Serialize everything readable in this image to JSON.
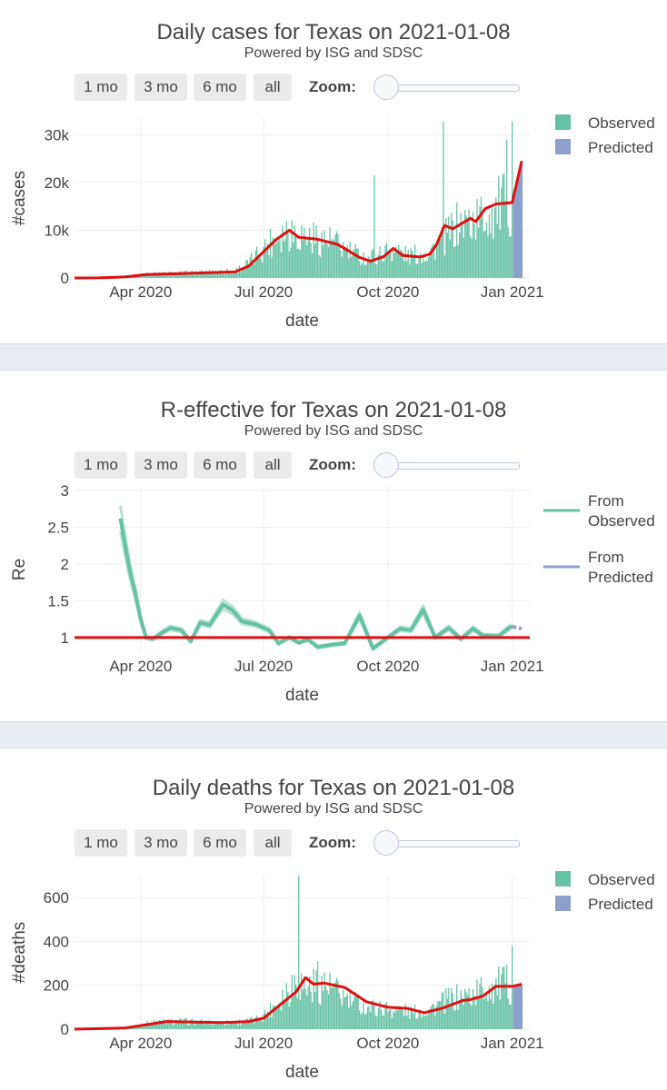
{
  "range_buttons": [
    "1 mo",
    "3 mo",
    "6 mo",
    "all"
  ],
  "zoom_label": "Zoom:",
  "colors": {
    "observed": "#66c2a5",
    "predicted": "#8da0cb",
    "trend": "#e01010",
    "grid": "#eeeeee"
  },
  "chart_data": [
    {
      "type": "bar",
      "title": "Daily cases for Texas on 2021-01-08",
      "subtitle": "Powered by ISG and SDSC",
      "xlabel": "date",
      "ylabel": "#cases",
      "ylim": [
        0,
        33500
      ],
      "yticks": [
        0,
        10000,
        20000,
        30000
      ],
      "ytick_labels": [
        "0",
        "10k",
        "20k",
        "30k"
      ],
      "xrange": [
        "2020-02-12",
        "2021-01-14"
      ],
      "xticks": [
        "2020-04-01",
        "2020-07-01",
        "2020-10-01",
        "2021-01-01"
      ],
      "xtick_labels": [
        "Apr 2020",
        "Jul 2020",
        "Oct 2020",
        "Jan 2021"
      ],
      "legend": {
        "position": "right",
        "entries": [
          "Observed",
          "Predicted"
        ]
      },
      "observed_anchors": [
        [
          "2020-02-12",
          0
        ],
        [
          "2020-03-10",
          50
        ],
        [
          "2020-03-25",
          400
        ],
        [
          "2020-04-10",
          900
        ],
        [
          "2020-05-01",
          1000
        ],
        [
          "2020-05-20",
          1200
        ],
        [
          "2020-06-10",
          1500
        ],
        [
          "2020-06-20",
          3000
        ],
        [
          "2020-07-01",
          6000
        ],
        [
          "2020-07-10",
          8500
        ],
        [
          "2020-07-20",
          10000
        ],
        [
          "2020-08-01",
          8500
        ],
        [
          "2020-08-20",
          7500
        ],
        [
          "2020-09-01",
          5500
        ],
        [
          "2020-09-15",
          4000
        ],
        [
          "2020-09-25",
          4800
        ],
        [
          "2020-10-05",
          6200
        ],
        [
          "2020-10-15",
          4500
        ],
        [
          "2020-10-30",
          5000
        ],
        [
          "2020-11-10",
          7500
        ],
        [
          "2020-11-20",
          10500
        ],
        [
          "2020-12-01",
          11500
        ],
        [
          "2020-12-15",
          13000
        ],
        [
          "2020-12-25",
          15000
        ],
        [
          "2021-01-01",
          15500
        ]
      ],
      "observed_spikes": [
        [
          "2020-09-21",
          21500
        ],
        [
          "2020-11-11",
          32800
        ],
        [
          "2020-12-28",
          29000
        ],
        [
          "2021-01-01",
          32800
        ]
      ],
      "predicted_range": [
        "2021-01-02",
        "2021-01-08"
      ],
      "predicted_values": [
        17500,
        19000,
        20500,
        21500,
        22500,
        23500,
        24500
      ],
      "trend": [
        [
          "2020-02-12",
          0
        ],
        [
          "2020-03-01",
          20
        ],
        [
          "2020-03-20",
          200
        ],
        [
          "2020-04-05",
          700
        ],
        [
          "2020-05-01",
          900
        ],
        [
          "2020-05-20",
          1100
        ],
        [
          "2020-06-10",
          1300
        ],
        [
          "2020-06-20",
          2500
        ],
        [
          "2020-07-01",
          5500
        ],
        [
          "2020-07-10",
          8000
        ],
        [
          "2020-07-20",
          10000
        ],
        [
          "2020-07-27",
          8500
        ],
        [
          "2020-08-10",
          8100
        ],
        [
          "2020-08-25",
          7000
        ],
        [
          "2020-09-10",
          4300
        ],
        [
          "2020-09-18",
          3500
        ],
        [
          "2020-09-28",
          4500
        ],
        [
          "2020-10-05",
          6200
        ],
        [
          "2020-10-12",
          4700
        ],
        [
          "2020-10-25",
          4400
        ],
        [
          "2020-11-01",
          5000
        ],
        [
          "2020-11-06",
          7000
        ],
        [
          "2020-11-12",
          11000
        ],
        [
          "2020-11-18",
          10300
        ],
        [
          "2020-12-01",
          12500
        ],
        [
          "2020-12-05",
          11800
        ],
        [
          "2020-12-12",
          14500
        ],
        [
          "2020-12-20",
          15500
        ],
        [
          "2021-01-01",
          15800
        ],
        [
          "2021-01-08",
          24500
        ]
      ]
    },
    {
      "type": "line",
      "title": "R-effective for Texas on 2021-01-08",
      "subtitle": "Powered by ISG and SDSC",
      "xlabel": "date",
      "ylabel": "Re",
      "ylim": [
        0.8,
        3.05
      ],
      "yticks": [
        1,
        1.5,
        2,
        2.5,
        3
      ],
      "ytick_labels": [
        "1",
        "1.5",
        "2",
        "2.5",
        "3"
      ],
      "xrange": [
        "2020-02-12",
        "2021-01-14"
      ],
      "xticks": [
        "2020-04-01",
        "2020-07-01",
        "2020-10-01",
        "2021-01-01"
      ],
      "xtick_labels": [
        "Apr 2020",
        "Jul 2020",
        "Oct 2020",
        "Jan 2021"
      ],
      "legend": {
        "position": "right",
        "entries": [
          "From Observed",
          "From Predicted"
        ]
      },
      "reference_line": 1,
      "observed": [
        [
          "2020-03-17",
          2.62
        ],
        [
          "2020-03-20",
          2.3
        ],
        [
          "2020-03-24",
          1.9
        ],
        [
          "2020-03-28",
          1.6
        ],
        [
          "2020-04-01",
          1.25
        ],
        [
          "2020-04-05",
          1.0
        ],
        [
          "2020-04-10",
          0.98
        ],
        [
          "2020-04-18",
          1.08
        ],
        [
          "2020-04-23",
          1.13
        ],
        [
          "2020-05-01",
          1.1
        ],
        [
          "2020-05-08",
          0.95
        ],
        [
          "2020-05-15",
          1.2
        ],
        [
          "2020-05-22",
          1.17
        ],
        [
          "2020-06-01",
          1.45
        ],
        [
          "2020-06-08",
          1.37
        ],
        [
          "2020-06-15",
          1.22
        ],
        [
          "2020-06-25",
          1.18
        ],
        [
          "2020-07-05",
          1.1
        ],
        [
          "2020-07-12",
          0.92
        ],
        [
          "2020-07-20",
          1.0
        ],
        [
          "2020-07-27",
          0.93
        ],
        [
          "2020-08-03",
          0.97
        ],
        [
          "2020-08-10",
          0.87
        ],
        [
          "2020-08-20",
          0.9
        ],
        [
          "2020-08-30",
          0.92
        ],
        [
          "2020-09-10",
          1.3
        ],
        [
          "2020-09-20",
          0.85
        ],
        [
          "2020-10-01",
          1.0
        ],
        [
          "2020-10-10",
          1.12
        ],
        [
          "2020-10-18",
          1.1
        ],
        [
          "2020-10-27",
          1.38
        ],
        [
          "2020-11-05",
          1.0
        ],
        [
          "2020-11-15",
          1.13
        ],
        [
          "2020-11-24",
          0.98
        ],
        [
          "2020-12-03",
          1.12
        ],
        [
          "2020-12-10",
          1.03
        ],
        [
          "2020-12-22",
          1.02
        ],
        [
          "2020-12-31",
          1.15
        ]
      ],
      "predicted": [
        [
          "2020-12-31",
          1.15
        ],
        [
          "2021-01-08",
          1.12
        ]
      ]
    },
    {
      "type": "bar",
      "title": "Daily deaths for Texas on 2021-01-08",
      "subtitle": "Powered by ISG and SDSC",
      "xlabel": "date",
      "ylabel": "#deaths",
      "ylim": [
        0,
        700
      ],
      "yticks": [
        0,
        200,
        400,
        600
      ],
      "ytick_labels": [
        "0",
        "200",
        "400",
        "600"
      ],
      "xrange": [
        "2020-02-12",
        "2021-01-14"
      ],
      "xticks": [
        "2020-04-01",
        "2020-07-01",
        "2020-10-01",
        "2021-01-01"
      ],
      "xtick_labels": [
        "Apr 2020",
        "Jul 2020",
        "Oct 2020",
        "Jan 2021"
      ],
      "legend": {
        "position": "right",
        "entries": [
          "Observed",
          "Predicted"
        ]
      },
      "observed_anchors": [
        [
          "2020-02-12",
          0
        ],
        [
          "2020-03-10",
          0
        ],
        [
          "2020-03-25",
          10
        ],
        [
          "2020-04-10",
          30
        ],
        [
          "2020-05-01",
          35
        ],
        [
          "2020-05-20",
          30
        ],
        [
          "2020-06-10",
          30
        ],
        [
          "2020-06-25",
          40
        ],
        [
          "2020-07-05",
          80
        ],
        [
          "2020-07-15",
          150
        ],
        [
          "2020-07-25",
          220
        ],
        [
          "2020-08-01",
          190
        ],
        [
          "2020-08-15",
          200
        ],
        [
          "2020-09-01",
          130
        ],
        [
          "2020-09-15",
          100
        ],
        [
          "2020-10-01",
          90
        ],
        [
          "2020-10-20",
          75
        ],
        [
          "2020-11-01",
          90
        ],
        [
          "2020-11-15",
          130
        ],
        [
          "2020-12-01",
          150
        ],
        [
          "2020-12-15",
          190
        ],
        [
          "2021-01-01",
          200
        ]
      ],
      "observed_spikes": [
        [
          "2020-07-27",
          700
        ],
        [
          "2020-08-10",
          310
        ],
        [
          "2021-01-01",
          380
        ]
      ],
      "predicted_range": [
        "2021-01-02",
        "2021-01-08"
      ],
      "predicted_values": [
        190,
        192,
        195,
        197,
        199,
        201,
        203
      ],
      "trend": [
        [
          "2020-02-12",
          0
        ],
        [
          "2020-03-20",
          5
        ],
        [
          "2020-04-10",
          25
        ],
        [
          "2020-04-20",
          35
        ],
        [
          "2020-05-10",
          32
        ],
        [
          "2020-06-01",
          30
        ],
        [
          "2020-06-20",
          35
        ],
        [
          "2020-07-01",
          50
        ],
        [
          "2020-07-15",
          120
        ],
        [
          "2020-07-25",
          170
        ],
        [
          "2020-08-01",
          235
        ],
        [
          "2020-08-07",
          205
        ],
        [
          "2020-08-15",
          210
        ],
        [
          "2020-08-30",
          190
        ],
        [
          "2020-09-15",
          125
        ],
        [
          "2020-10-01",
          100
        ],
        [
          "2020-10-15",
          95
        ],
        [
          "2020-10-28",
          75
        ],
        [
          "2020-11-10",
          95
        ],
        [
          "2020-11-25",
          130
        ],
        [
          "2020-12-01",
          135
        ],
        [
          "2020-12-10",
          150
        ],
        [
          "2020-12-20",
          195
        ],
        [
          "2021-01-01",
          195
        ],
        [
          "2021-01-08",
          205
        ]
      ]
    }
  ]
}
